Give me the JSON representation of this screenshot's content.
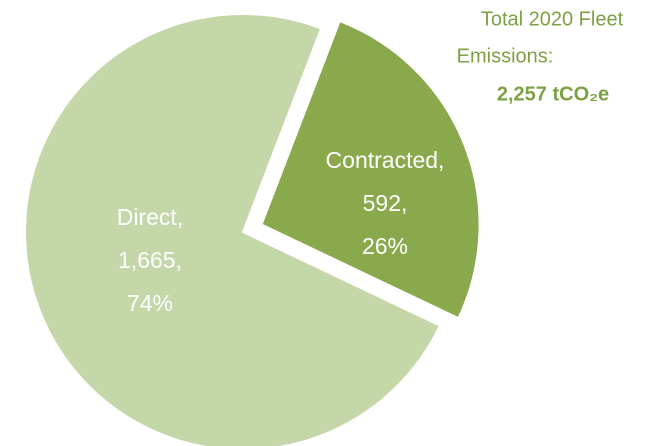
{
  "chart_data": {
    "type": "pie",
    "annotation_lines": [
      "Total 2020 Fleet",
      "Emissions:"
    ],
    "total_label": "2,257 tCO₂e",
    "categories": [
      "Direct,",
      "Contracted,"
    ],
    "values": [
      1665,
      592
    ],
    "value_labels": [
      "1,665,",
      "592,"
    ],
    "percent_labels": [
      "74%",
      "26%"
    ],
    "colors": [
      "#c5d6a8",
      "#8aa94c"
    ],
    "exploded": [
      false,
      true
    ]
  }
}
